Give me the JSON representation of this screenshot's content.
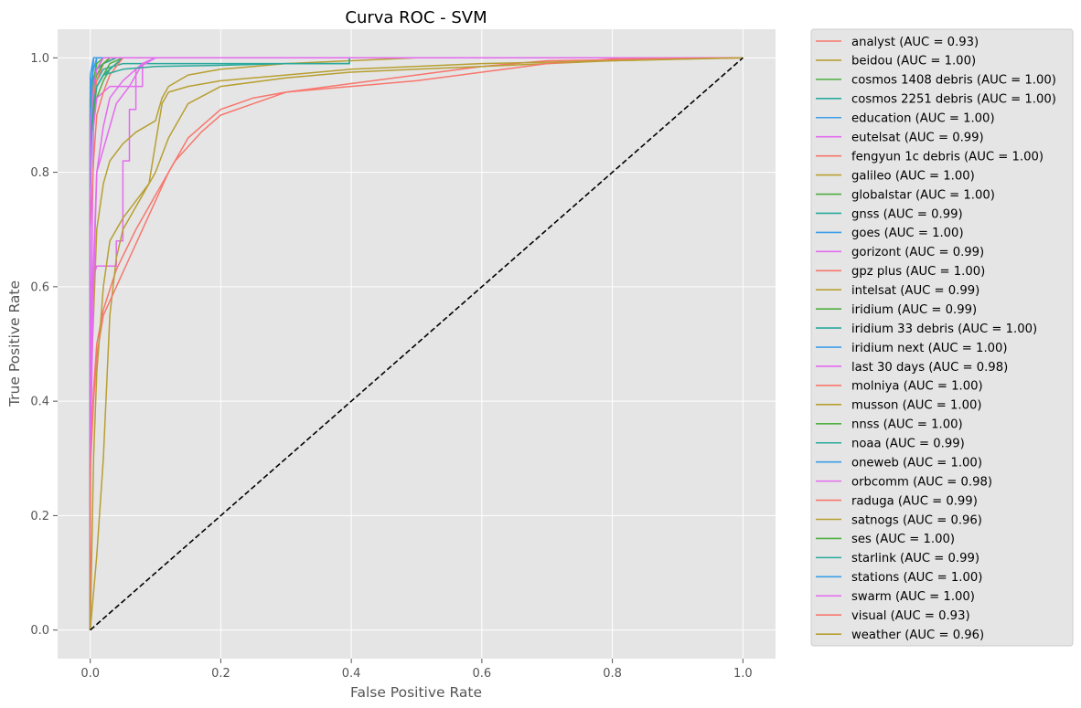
{
  "chart_data": {
    "type": "line",
    "title": "Curva ROC - SVM",
    "xlabel": "False Positive Rate",
    "ylabel": "True Positive Rate",
    "xlim": [
      -0.05,
      1.05
    ],
    "ylim": [
      -0.05,
      1.05
    ],
    "xticks": [
      "0.0",
      "0.2",
      "0.4",
      "0.6",
      "0.8",
      "1.0"
    ],
    "yticks": [
      "0.0",
      "0.2",
      "0.4",
      "0.6",
      "0.8",
      "1.0"
    ],
    "grid": true,
    "legend_position": "outside-right",
    "colors": {
      "red": "#f8766d",
      "olive": "#b79f32",
      "green": "#4eae3f",
      "teal": "#2aaa9c",
      "blue": "#3c9ee8",
      "magenta": "#e46bee",
      "plot_background": "#e5e5e5",
      "grid": "#ffffff",
      "diagonal": "#000000"
    },
    "diagonal": {
      "x": [
        0,
        1
      ],
      "y": [
        0,
        1
      ],
      "style": "dashed"
    },
    "series": [
      {
        "name": "analyst (AUC = 0.93)",
        "color": "#f8766d",
        "x": [
          0,
          0,
          0.005,
          0.01,
          0.02,
          0.04,
          0.07,
          0.1,
          0.13,
          0.17,
          0.2,
          0.25,
          0.3,
          0.4,
          0.5,
          0.6,
          0.7,
          1.0
        ],
        "y": [
          0,
          0.3,
          0.42,
          0.5,
          0.56,
          0.63,
          0.7,
          0.76,
          0.82,
          0.87,
          0.9,
          0.92,
          0.94,
          0.955,
          0.97,
          0.985,
          0.995,
          1.0
        ]
      },
      {
        "name": "beidou (AUC = 1.00)",
        "color": "#b79f32",
        "x": [
          0,
          0,
          0.005,
          0.01,
          0.02,
          0.03,
          1.0
        ],
        "y": [
          0,
          0.9,
          0.95,
          0.98,
          0.99,
          1.0,
          1.0
        ]
      },
      {
        "name": "cosmos 1408 debris (AUC = 1.00)",
        "color": "#4eae3f",
        "x": [
          0,
          0,
          0.003,
          0.01,
          0.02,
          0.04,
          1.0
        ],
        "y": [
          0,
          0.93,
          0.96,
          0.98,
          0.99,
          1.0,
          1.0
        ]
      },
      {
        "name": "cosmos 2251 debris (AUC = 1.00)",
        "color": "#2aaa9c",
        "x": [
          0,
          0,
          0.01,
          0.02,
          0.05,
          0.1,
          0.397,
          0.397,
          0.4,
          1.0
        ],
        "y": [
          0,
          0.94,
          0.96,
          0.98,
          0.99,
          0.99,
          0.99,
          1.0,
          1.0,
          1.0
        ]
      },
      {
        "name": "education (AUC = 1.00)",
        "color": "#3c9ee8",
        "x": [
          0,
          0,
          0.005,
          0.01,
          1.0
        ],
        "y": [
          0,
          0.95,
          0.98,
          1.0,
          1.0
        ]
      },
      {
        "name": "eutelsat (AUC = 0.99)",
        "color": "#e46bee",
        "x": [
          0,
          0,
          0.005,
          0.01,
          0.03,
          0.04,
          0.06,
          0.07,
          0.08,
          0.1,
          1.0
        ],
        "y": [
          0,
          0.5,
          0.64,
          0.8,
          0.88,
          0.92,
          0.95,
          0.97,
          0.99,
          1.0,
          1.0
        ]
      },
      {
        "name": "fengyun 1c debris (AUC = 1.00)",
        "color": "#f8766d",
        "x": [
          0,
          0,
          0.005,
          0.01,
          0.02,
          0.04,
          1.0
        ],
        "y": [
          0,
          0.9,
          0.95,
          0.98,
          0.99,
          1.0,
          1.0
        ]
      },
      {
        "name": "galileo (AUC = 1.00)",
        "color": "#b79f32",
        "x": [
          0,
          0,
          0.01,
          0.02,
          0.03,
          1.0
        ],
        "y": [
          0,
          0.92,
          0.96,
          0.99,
          1.0,
          1.0
        ]
      },
      {
        "name": "globalstar (AUC = 1.00)",
        "color": "#4eae3f",
        "x": [
          0,
          0,
          0.005,
          0.01,
          0.02,
          0.03,
          0.05,
          1.0
        ],
        "y": [
          0,
          0.85,
          0.9,
          0.95,
          0.97,
          0.99,
          1.0,
          1.0
        ]
      },
      {
        "name": "gnss (AUC = 0.99)",
        "color": "#2aaa9c",
        "x": [
          0,
          0,
          0.005,
          0.01,
          0.02,
          0.03,
          0.05,
          1.0
        ],
        "y": [
          0,
          0.88,
          0.93,
          0.95,
          0.97,
          0.98,
          1.0,
          1.0
        ]
      },
      {
        "name": "goes (AUC = 1.00)",
        "color": "#3c9ee8",
        "x": [
          0,
          0,
          0.005,
          1.0
        ],
        "y": [
          0,
          0.97,
          1.0,
          1.0
        ]
      },
      {
        "name": "gorizont (AUC = 0.99)",
        "color": "#e46bee",
        "x": [
          0,
          0,
          0.01,
          0.04,
          0.04,
          0.05,
          0.05,
          0.06,
          0.06,
          0.07,
          0.07,
          0.08,
          0.08,
          0.1,
          1.0
        ],
        "y": [
          0,
          0.6,
          0.636,
          0.636,
          0.68,
          0.68,
          0.82,
          0.82,
          0.91,
          0.91,
          0.95,
          0.95,
          0.99,
          1.0,
          1.0
        ]
      },
      {
        "name": "gpz plus (AUC = 1.00)",
        "color": "#f8766d",
        "x": [
          0,
          0,
          0.005,
          0.01,
          0.02,
          1.0
        ],
        "y": [
          0,
          0.85,
          0.95,
          0.98,
          1.0,
          1.0
        ]
      },
      {
        "name": "intelsat (AUC = 0.99)",
        "color": "#b79f32",
        "x": [
          0,
          0,
          0.005,
          0.01,
          0.02,
          0.03,
          0.05,
          0.07,
          0.1,
          0.11,
          0.12,
          0.15,
          0.2,
          0.3,
          0.5,
          1.0
        ],
        "y": [
          0,
          0.4,
          0.55,
          0.7,
          0.78,
          0.82,
          0.85,
          0.87,
          0.89,
          0.93,
          0.95,
          0.97,
          0.98,
          0.99,
          1.0,
          1.0
        ]
      },
      {
        "name": "iridium (AUC = 0.99)",
        "color": "#4eae3f",
        "x": [
          0,
          0,
          0.005,
          0.01,
          0.02,
          0.03,
          0.05,
          1.0
        ],
        "y": [
          0,
          0.85,
          0.9,
          0.93,
          0.96,
          0.98,
          1.0,
          1.0
        ]
      },
      {
        "name": "iridium 33 debris (AUC = 1.00)",
        "color": "#2aaa9c",
        "x": [
          0,
          0,
          0.005,
          0.01,
          0.02,
          0.04,
          1.0
        ],
        "y": [
          0,
          0.9,
          0.95,
          0.98,
          0.99,
          1.0,
          1.0
        ]
      },
      {
        "name": "iridium next (AUC = 1.00)",
        "color": "#3c9ee8",
        "x": [
          0,
          0,
          0.003,
          0.005,
          0.01,
          1.0
        ],
        "y": [
          0,
          0.75,
          0.9,
          0.95,
          1.0,
          1.0
        ]
      },
      {
        "name": "last 30 days (AUC = 0.98)",
        "color": "#e46bee",
        "x": [
          0,
          0,
          0.003,
          0.005,
          0.01,
          0.03,
          0.05,
          0.07,
          0.07,
          0.08,
          0.1,
          1.0
        ],
        "y": [
          0,
          0.2,
          0.7,
          0.88,
          0.93,
          0.95,
          0.95,
          0.95,
          0.98,
          0.99,
          1.0,
          1.0
        ]
      },
      {
        "name": "molniya (AUC = 1.00)",
        "color": "#f8766d",
        "x": [
          0,
          0,
          0.005,
          0.01,
          0.02,
          0.03,
          1.0
        ],
        "y": [
          0,
          0.88,
          0.93,
          0.96,
          0.99,
          1.0,
          1.0
        ]
      },
      {
        "name": "musson (AUC = 1.00)",
        "color": "#b79f32",
        "x": [
          0,
          0,
          0.005,
          0.01,
          0.02,
          1.0
        ],
        "y": [
          0,
          0.9,
          0.95,
          0.98,
          1.0,
          1.0
        ]
      },
      {
        "name": "nnss (AUC = 1.00)",
        "color": "#4eae3f",
        "x": [
          0,
          0,
          0.01,
          0.02,
          0.03,
          1.0
        ],
        "y": [
          0,
          0.93,
          0.97,
          0.99,
          1.0,
          1.0
        ]
      },
      {
        "name": "noaa (AUC = 0.99)",
        "color": "#2aaa9c",
        "x": [
          0,
          0,
          0.005,
          0.01,
          0.02,
          0.03,
          0.05,
          1.0
        ],
        "y": [
          0,
          0.87,
          0.92,
          0.95,
          0.97,
          0.98,
          1.0,
          1.0
        ]
      },
      {
        "name": "oneweb (AUC = 1.00)",
        "color": "#3c9ee8",
        "x": [
          0,
          0,
          0.003,
          0.005,
          1.0
        ],
        "y": [
          0,
          0.9,
          0.95,
          1.0,
          1.0
        ]
      },
      {
        "name": "orbcomm (AUC = 0.98)",
        "color": "#e46bee",
        "x": [
          0,
          0,
          0.005,
          0.01,
          0.02,
          0.03,
          0.05,
          0.07,
          0.1,
          1.0
        ],
        "y": [
          0,
          0.3,
          0.6,
          0.8,
          0.88,
          0.93,
          0.96,
          0.98,
          1.0,
          1.0
        ]
      },
      {
        "name": "raduga (AUC = 0.99)",
        "color": "#f8766d",
        "x": [
          0,
          0,
          0.005,
          0.01,
          0.02,
          0.03,
          0.05,
          1.0
        ],
        "y": [
          0,
          0.7,
          0.82,
          0.9,
          0.94,
          0.97,
          1.0,
          1.0
        ]
      },
      {
        "name": "satnogs (AUC = 0.96)",
        "color": "#b79f32",
        "x": [
          0,
          0.01,
          0.02,
          0.03,
          0.04,
          0.05,
          0.06,
          0.08,
          0.1,
          0.12,
          0.15,
          0.2,
          0.3,
          0.4,
          0.5,
          0.6,
          0.7,
          0.8,
          0.9,
          1.0
        ],
        "y": [
          0,
          0.13,
          0.3,
          0.55,
          0.65,
          0.7,
          0.72,
          0.76,
          0.8,
          0.86,
          0.92,
          0.95,
          0.965,
          0.975,
          0.98,
          0.985,
          0.99,
          0.995,
          0.998,
          1.0
        ]
      },
      {
        "name": "ses (AUC = 1.00)",
        "color": "#4eae3f",
        "x": [
          0,
          0,
          0.005,
          0.01,
          0.02,
          1.0
        ],
        "y": [
          0,
          0.9,
          0.96,
          0.99,
          1.0,
          1.0
        ]
      },
      {
        "name": "starlink (AUC = 0.99)",
        "color": "#2aaa9c",
        "x": [
          0,
          0,
          0.005,
          0.01,
          0.02,
          0.05,
          0.1,
          0.2,
          0.3,
          0.397,
          0.397,
          1.0
        ],
        "y": [
          0,
          0.85,
          0.92,
          0.95,
          0.97,
          0.98,
          0.985,
          0.987,
          0.99,
          0.99,
          1.0,
          1.0
        ]
      },
      {
        "name": "stations (AUC = 1.00)",
        "color": "#3c9ee8",
        "x": [
          0,
          0,
          0.003,
          0.005,
          1.0
        ],
        "y": [
          0,
          0.92,
          0.97,
          1.0,
          1.0
        ]
      },
      {
        "name": "swarm (AUC = 1.00)",
        "color": "#e46bee",
        "x": [
          0,
          0,
          0.005,
          0.01,
          0.02,
          1.0
        ],
        "y": [
          0,
          0.88,
          0.95,
          0.98,
          1.0,
          1.0
        ]
      },
      {
        "name": "visual (AUC = 0.93)",
        "color": "#f8766d",
        "x": [
          0,
          0,
          0.005,
          0.01,
          0.02,
          0.04,
          0.06,
          0.08,
          0.1,
          0.12,
          0.15,
          0.18,
          0.2,
          0.25,
          0.3,
          0.4,
          0.5,
          0.6,
          0.7,
          0.8,
          1.0
        ],
        "y": [
          0,
          0.28,
          0.4,
          0.48,
          0.55,
          0.6,
          0.65,
          0.7,
          0.75,
          0.8,
          0.86,
          0.89,
          0.91,
          0.93,
          0.94,
          0.95,
          0.96,
          0.975,
          0.99,
          0.998,
          1.0
        ]
      },
      {
        "name": "weather (AUC = 0.96)",
        "color": "#b79f32",
        "x": [
          0,
          0.005,
          0.01,
          0.02,
          0.03,
          0.05,
          0.07,
          0.09,
          0.1,
          0.11,
          0.12,
          0.15,
          0.2,
          0.3,
          0.4,
          0.6,
          0.8,
          1.0
        ],
        "y": [
          0,
          0.3,
          0.45,
          0.6,
          0.68,
          0.72,
          0.75,
          0.78,
          0.85,
          0.92,
          0.94,
          0.95,
          0.96,
          0.97,
          0.98,
          0.99,
          0.995,
          1.0
        ]
      }
    ]
  }
}
